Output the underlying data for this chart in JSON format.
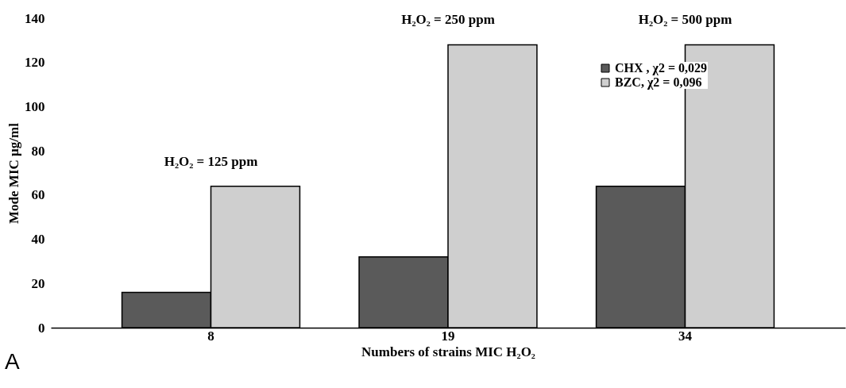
{
  "chart_data": {
    "type": "bar",
    "ylabel": "Mode MIC µg/ml",
    "xlabel": "Numbers of strains MIC H₂O₂",
    "categories": [
      "8",
      "19",
      "34"
    ],
    "series": [
      {
        "name": "CHX , χ2 = 0,029",
        "color": "#5a5a5a",
        "values": [
          16,
          32,
          64
        ]
      },
      {
        "name": "BZC, χ2 = 0,096",
        "color": "#cfcfcf",
        "values": [
          64,
          128,
          128
        ]
      }
    ],
    "ylim": [
      0,
      140
    ],
    "yticks": [
      0,
      20,
      40,
      60,
      80,
      100,
      120,
      140
    ],
    "grid": false,
    "legend": "top right",
    "annotations": [
      {
        "text": "H₂O₂ = 125  ppm",
        "x": "8",
        "y": 64
      },
      {
        "text": "H₂O₂ =  250 ppm",
        "x": "19",
        "y": 128
      },
      {
        "text": "H₂O₂ = 500 ppm",
        "x": "34",
        "y": 128
      },
      "A"
    ]
  }
}
